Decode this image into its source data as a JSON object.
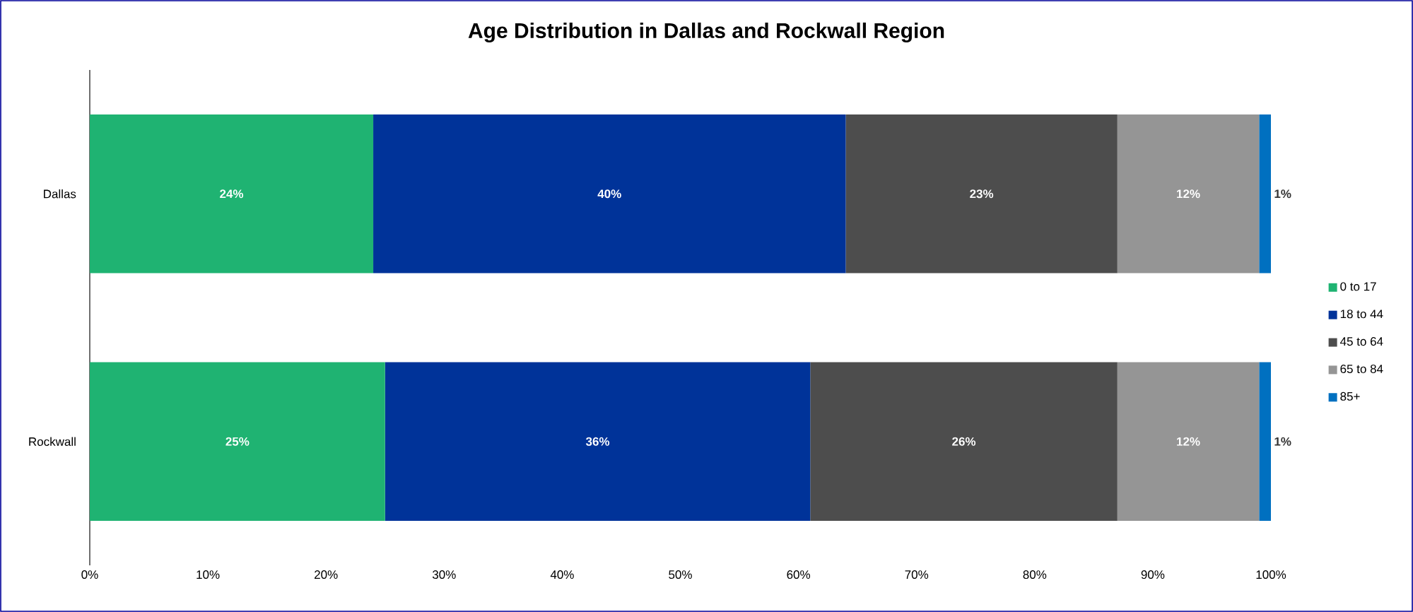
{
  "chart_data": {
    "type": "bar",
    "orientation": "horizontal",
    "stacked": true,
    "title": "Age Distribution in Dallas and Rockwall Region",
    "categories": [
      "Dallas",
      "Rockwall"
    ],
    "series": [
      {
        "name": "0 to 17",
        "color": "#1fb372",
        "values": [
          24,
          25
        ],
        "value_labels": [
          "24%",
          "25%"
        ]
      },
      {
        "name": "18 to 44",
        "color": "#003399",
        "values": [
          40,
          36
        ],
        "value_labels": [
          "40%",
          "36%"
        ]
      },
      {
        "name": "45 to 64",
        "color": "#4d4d4d",
        "values": [
          23,
          26
        ],
        "value_labels": [
          "23%",
          "26%"
        ]
      },
      {
        "name": "65 to 84",
        "color": "#959595",
        "values": [
          12,
          12
        ],
        "value_labels": [
          "12%",
          "12%"
        ]
      },
      {
        "name": "85+",
        "color": "#0070c0",
        "values": [
          1,
          1
        ],
        "value_labels": [
          "1%",
          "1%"
        ]
      }
    ],
    "xlim": [
      0,
      100
    ],
    "xticks": [
      {
        "value": 0,
        "label": "0%"
      },
      {
        "value": 10,
        "label": "10%"
      },
      {
        "value": 20,
        "label": "20%"
      },
      {
        "value": 30,
        "label": "30%"
      },
      {
        "value": 40,
        "label": "40%"
      },
      {
        "value": 50,
        "label": "50%"
      },
      {
        "value": 60,
        "label": "60%"
      },
      {
        "value": 70,
        "label": "70%"
      },
      {
        "value": 80,
        "label": "80%"
      },
      {
        "value": 90,
        "label": "90%"
      },
      {
        "value": 100,
        "label": "100%"
      }
    ],
    "legend": "right",
    "grid": false
  }
}
